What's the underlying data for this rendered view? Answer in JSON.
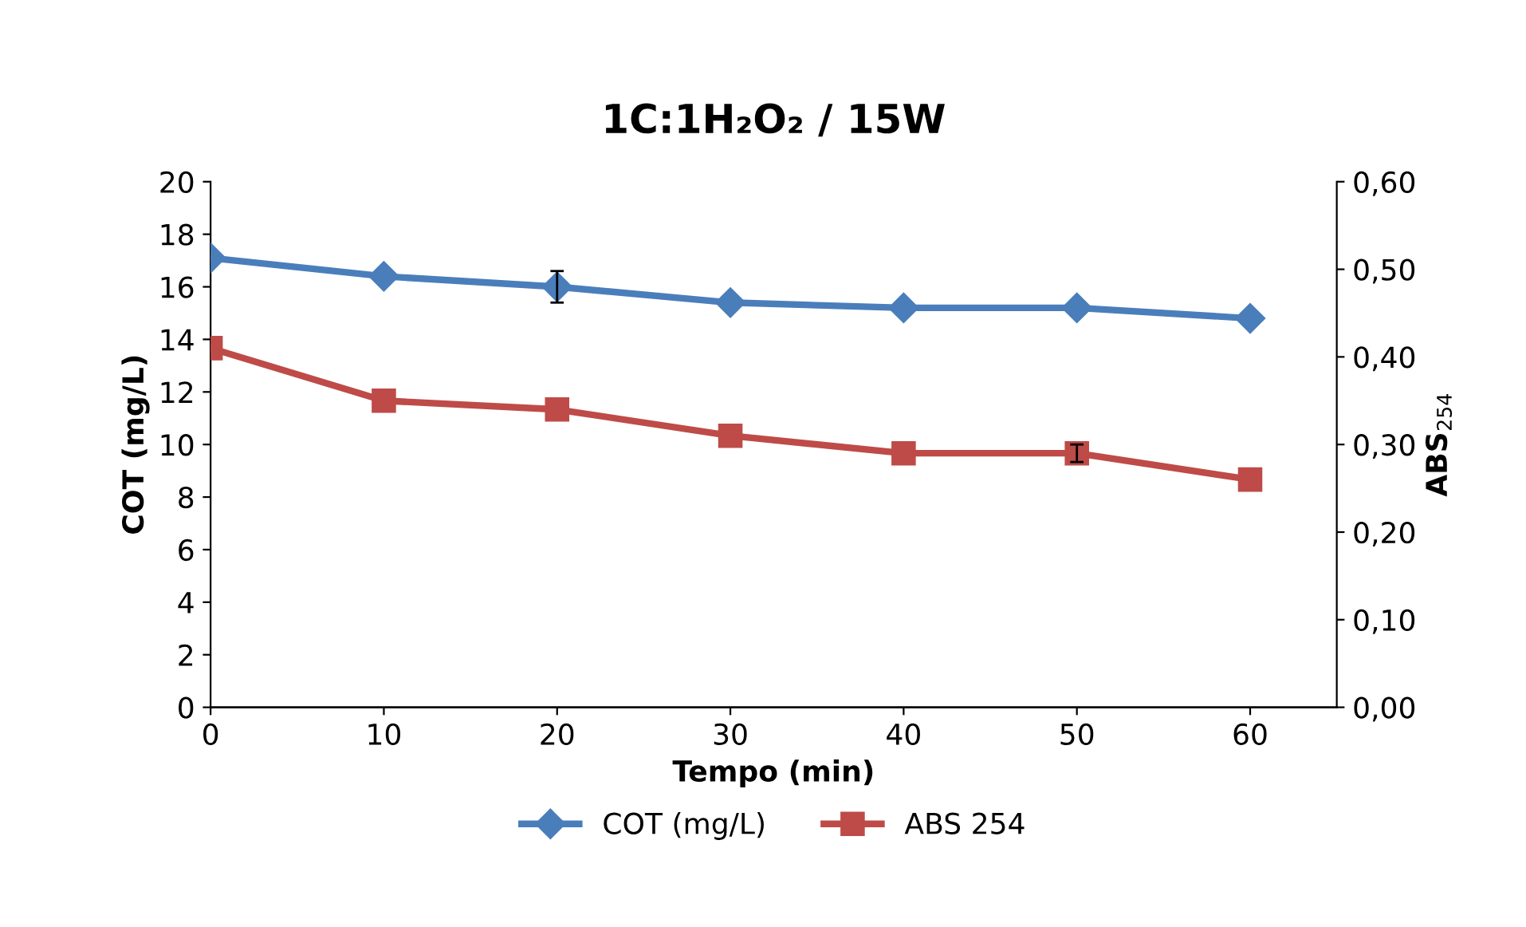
{
  "chart_data": {
    "type": "line",
    "title": "1C:1H₂O₂ / 15W",
    "xlabel": "Tempo (min)",
    "ylabel": "COT (mg/L)",
    "y2label": "ABS$_{254}$",
    "x": [
      0,
      10,
      20,
      30,
      40,
      50,
      60
    ],
    "series": [
      {
        "name": "COT (mg/L)",
        "color": "#4a7ebb",
        "marker": "diamond",
        "values": [
          17.1,
          16.4,
          16.0,
          15.4,
          15.2,
          15.2,
          14.8
        ],
        "errors": [
          null,
          null,
          0.6,
          null,
          null,
          null,
          null
        ]
      },
      {
        "name": "ABS 254",
        "color": "#be4b48",
        "marker": "square",
        "axis": "y2",
        "values": [
          0.41,
          0.35,
          0.34,
          0.31,
          0.29,
          0.29,
          0.26
        ],
        "errors": [
          null,
          null,
          null,
          null,
          null,
          0.01,
          null
        ]
      }
    ],
    "xlim": [
      0,
      65
    ],
    "xticks": [
      0,
      10,
      20,
      30,
      40,
      50,
      60
    ],
    "ylim": [
      0,
      20
    ],
    "yticks": [
      0,
      2,
      4,
      6,
      8,
      10,
      12,
      14,
      16,
      18,
      20
    ],
    "y2lim": [
      0,
      0.6
    ],
    "y2ticks": [
      {
        "value": 0,
        "label": "0,00"
      },
      {
        "value": 0.1,
        "label": "0,10"
      },
      {
        "value": 0.2,
        "label": "0,20"
      },
      {
        "value": 0.3,
        "label": "0,30"
      },
      {
        "value": 0.4,
        "label": "0,40"
      },
      {
        "value": 0.5,
        "label": "0,50"
      },
      {
        "value": 0.6,
        "label": "0,60"
      }
    ],
    "legend": "bottom",
    "grid": false
  }
}
